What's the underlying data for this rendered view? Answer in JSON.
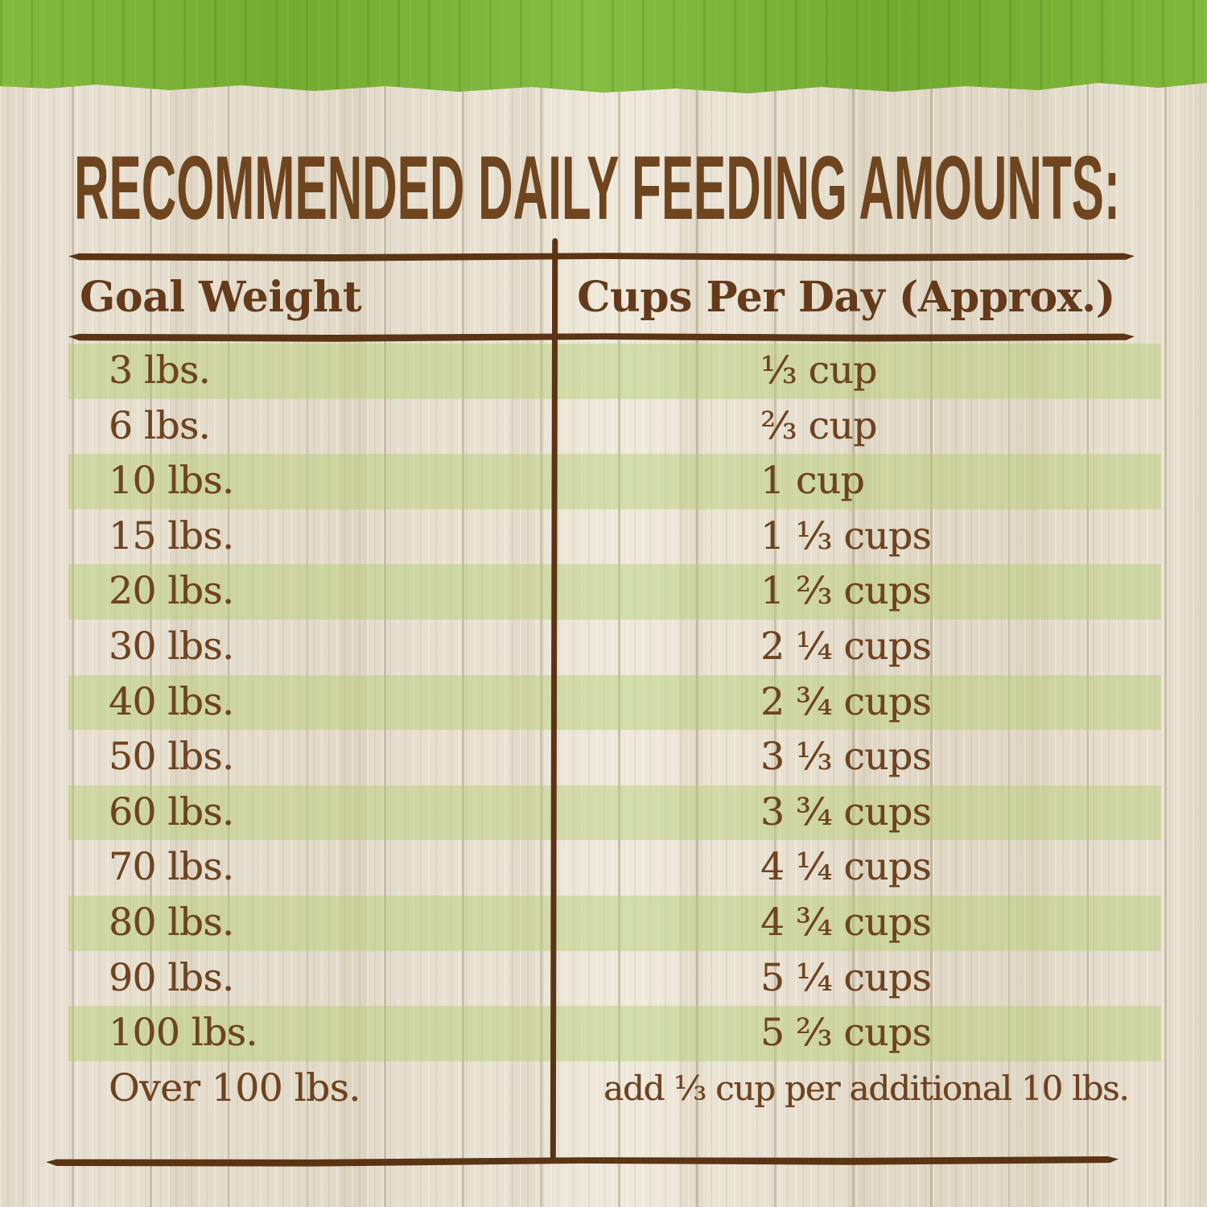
{
  "title": "RECOMMENDED DAILY FEEDING AMOUNTS:",
  "table": {
    "columns": [
      "Goal Weight",
      "Cups Per Day (Approx.)"
    ],
    "rows": [
      {
        "weight": "3 lbs.",
        "cups": "⅓ cup"
      },
      {
        "weight": "6 lbs.",
        "cups": "⅔ cup"
      },
      {
        "weight": "10 lbs.",
        "cups": "1 cup"
      },
      {
        "weight": "15 lbs.",
        "cups": "1 ⅓ cups"
      },
      {
        "weight": "20 lbs.",
        "cups": "1 ⅔ cups"
      },
      {
        "weight": "30 lbs.",
        "cups": "2 ¼ cups"
      },
      {
        "weight": "40 lbs.",
        "cups": "2 ¾ cups"
      },
      {
        "weight": "50 lbs.",
        "cups": "3 ⅓ cups"
      },
      {
        "weight": "60 lbs.",
        "cups": "3 ¾ cups"
      },
      {
        "weight": "70 lbs.",
        "cups": "4 ¼ cups"
      },
      {
        "weight": "80 lbs.",
        "cups": "4 ¾ cups"
      },
      {
        "weight": "90 lbs.",
        "cups": "5 ¼ cups"
      },
      {
        "weight": "100 lbs.",
        "cups": "5 ⅔ cups"
      },
      {
        "weight": "Over 100 lbs.",
        "cups": "add ⅓ cup per additional 10 lbs."
      }
    ]
  },
  "colors": {
    "banner_green": "#7fb63a",
    "stripe_green": "#cfdfa5",
    "text_brown": "#6e4320",
    "rule_brown": "#5b3414",
    "wood_background": "#e7e0d2"
  },
  "chart_data": {
    "type": "table",
    "title": "RECOMMENDED DAILY FEEDING AMOUNTS:",
    "columns": [
      "Goal Weight",
      "Cups Per Day (Approx.)"
    ],
    "categories": [
      "3 lbs.",
      "6 lbs.",
      "10 lbs.",
      "15 lbs.",
      "20 lbs.",
      "30 lbs.",
      "40 lbs.",
      "50 lbs.",
      "60 lbs.",
      "70 lbs.",
      "80 lbs.",
      "90 lbs.",
      "100 lbs.",
      "Over 100 lbs."
    ],
    "values": [
      "⅓ cup",
      "⅔ cup",
      "1 cup",
      "1 ⅓ cups",
      "1 ⅔ cups",
      "2 ¼ cups",
      "2 ¾ cups",
      "3 ⅓ cups",
      "3 ¾ cups",
      "4 ¼ cups",
      "4 ¾ cups",
      "5 ¼ cups",
      "5 ⅔ cups",
      "add ⅓ cup per additional 10 lbs."
    ],
    "values_numeric_cups": [
      0.33,
      0.67,
      1,
      1.33,
      1.67,
      2.25,
      2.75,
      3.33,
      3.75,
      4.25,
      4.75,
      5.25,
      5.67,
      null
    ],
    "layout": "striped rows, alternating pale-green/wood"
  }
}
